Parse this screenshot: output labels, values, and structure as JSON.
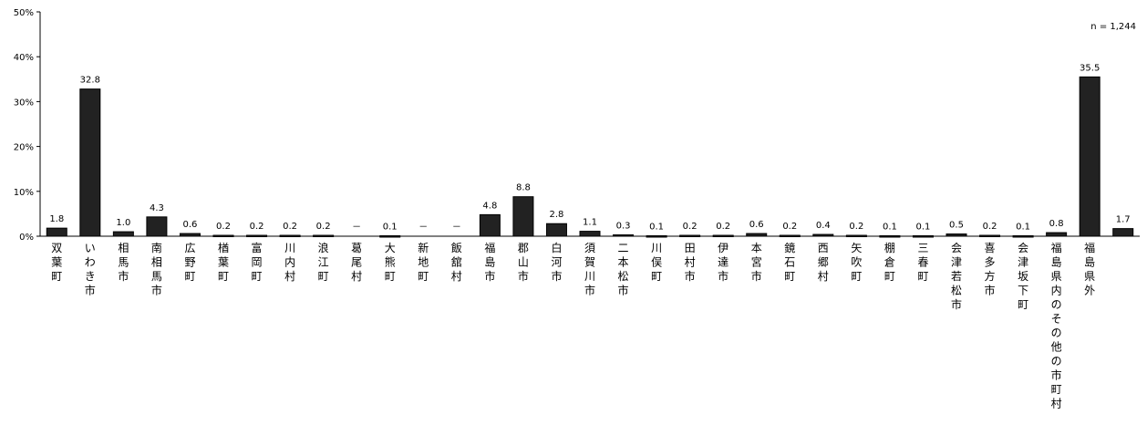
{
  "chart_data": {
    "type": "bar",
    "n_label": "n = 1,244",
    "ylim": [
      0,
      50
    ],
    "yticks": [
      "0%",
      "10%",
      "20%",
      "30%",
      "40%",
      "50%"
    ],
    "grid": false,
    "categories": [
      "双葉町",
      "いわき市",
      "相馬市",
      "南相馬市",
      "広野町",
      "楢葉町",
      "富岡町",
      "川内村",
      "浪江町",
      "葛尾村",
      "大熊町",
      "新地町",
      "飯舘村",
      "福島市",
      "郡山市",
      "白河市",
      "須賀川市",
      "二本松市",
      "川俣町",
      "田村市",
      "伊達市",
      "本宮市",
      "鏡石町",
      "西郷村",
      "矢吹町",
      "棚倉町",
      "三春町",
      "会津若松市",
      "喜多方市",
      "会津坂下町",
      "福島県内のその他の市町村",
      "福島県外",
      ""
    ],
    "values": [
      1.8,
      32.8,
      1.0,
      4.3,
      0.6,
      0.2,
      0.2,
      0.2,
      0.2,
      null,
      0.1,
      null,
      null,
      4.8,
      8.8,
      2.8,
      1.1,
      0.3,
      0.1,
      0.2,
      0.2,
      0.6,
      0.2,
      0.4,
      0.2,
      0.1,
      0.1,
      0.5,
      0.2,
      0.1,
      0.8,
      35.5,
      1.7
    ],
    "value_labels": [
      "1.8",
      "32.8",
      "1.0",
      "4.3",
      "0.6",
      "0.2",
      "0.2",
      "0.2",
      "0.2",
      "－",
      "0.1",
      "－",
      "－",
      "4.8",
      "8.8",
      "2.8",
      "1.1",
      "0.3",
      "0.1",
      "0.2",
      "0.2",
      "0.6",
      "0.2",
      "0.4",
      "0.2",
      "0.1",
      "0.1",
      "0.5",
      "0.2",
      "0.1",
      "0.8",
      "35.5",
      "1.7"
    ]
  }
}
